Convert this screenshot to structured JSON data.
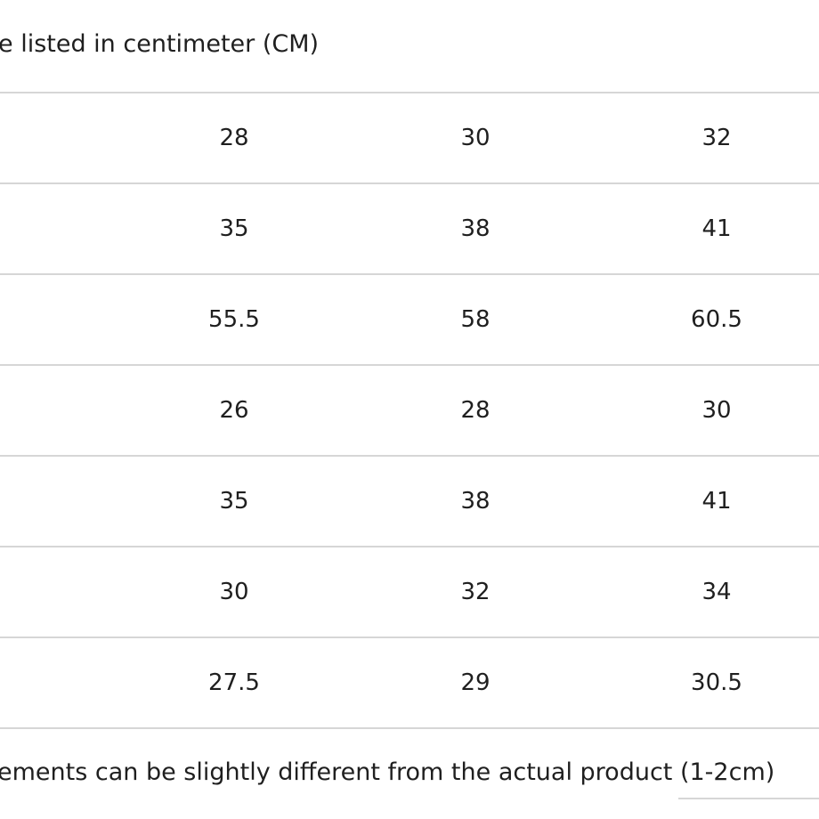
{
  "header_note": "e listed in centimeter (CM)",
  "table": {
    "rows": [
      [
        "28",
        "30",
        "32"
      ],
      [
        "35",
        "38",
        "41"
      ],
      [
        "55.5",
        "58",
        "60.5"
      ],
      [
        "26",
        "28",
        "30"
      ],
      [
        "35",
        "38",
        "41"
      ],
      [
        "30",
        "32",
        "34"
      ],
      [
        "27.5",
        "29",
        "30.5"
      ]
    ]
  },
  "footer_note": "ements can be slightly different from the actual product (1-2cm)"
}
